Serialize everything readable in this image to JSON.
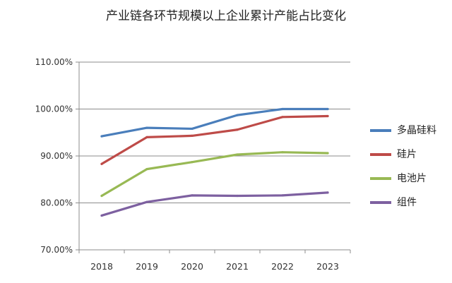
{
  "chart_data": {
    "type": "line",
    "title": "产业链各环节规模以上企业累计产能占比变化",
    "xlabel": "",
    "ylabel": "",
    "categories": [
      "2018",
      "2019",
      "2020",
      "2021",
      "2022",
      "2023"
    ],
    "ylim": [
      70,
      110
    ],
    "yticks": [
      "110.00%",
      "100.00%",
      "90.00%",
      "80.00%",
      "70.00%"
    ],
    "grid": "horizontal",
    "legend_position": "right",
    "series": [
      {
        "name": "多晶硅料",
        "color": "#4a7ebb",
        "values": [
          94.2,
          96.0,
          95.8,
          98.7,
          100.0,
          100.0
        ]
      },
      {
        "name": "硅片",
        "color": "#be4b48",
        "values": [
          88.3,
          94.0,
          94.3,
          95.6,
          98.3,
          98.5
        ]
      },
      {
        "name": "电池片",
        "color": "#98b954",
        "values": [
          81.5,
          87.2,
          88.7,
          90.3,
          90.8,
          90.6
        ]
      },
      {
        "name": "组件",
        "color": "#7d60a0",
        "values": [
          77.3,
          80.2,
          81.6,
          81.5,
          81.6,
          82.2
        ]
      }
    ]
  }
}
